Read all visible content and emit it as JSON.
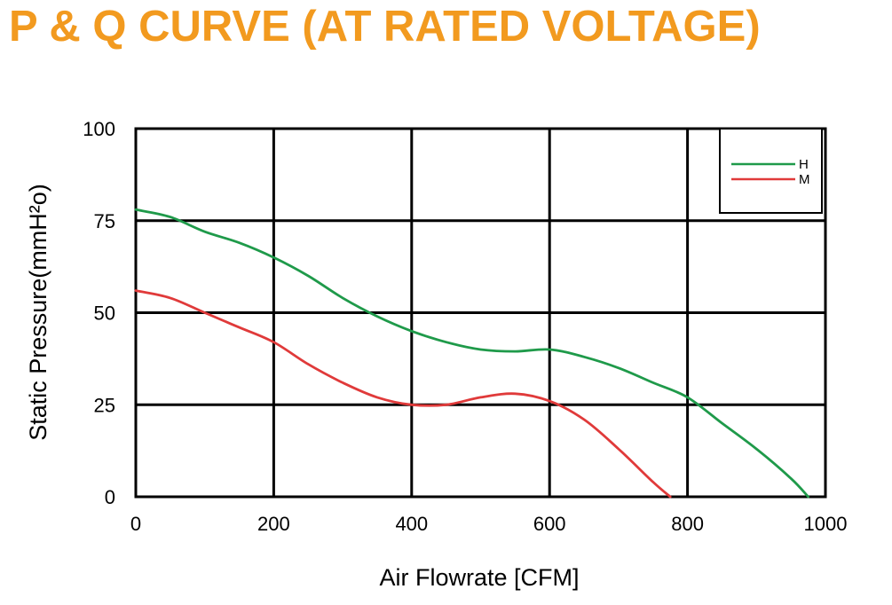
{
  "colors": {
    "title": "#f29a1f",
    "series_h": "#1f9a4a",
    "series_m": "#e03a3a",
    "grid": "#000000"
  },
  "chart_data": {
    "type": "line",
    "title": "P & Q CURVE (AT RATED VOLTAGE)",
    "xlabel": "Air  Flowrate   [CFM]",
    "ylabel": "Static Pressure(mmH²o)",
    "xlim": [
      0,
      1000
    ],
    "ylim": [
      0,
      100
    ],
    "xticks": [
      0,
      200,
      400,
      600,
      800,
      1000
    ],
    "yticks": [
      0,
      25,
      50,
      75,
      100
    ],
    "xtick_labels": [
      "0",
      "200",
      "400",
      "600",
      "800",
      "1000"
    ],
    "ytick_labels": [
      "0",
      "25",
      "50",
      "75",
      "100"
    ],
    "grid": true,
    "legend_position": "top-right",
    "series": [
      {
        "name": "H",
        "color": "#1f9a4a",
        "x": [
          0,
          50,
          100,
          150,
          200,
          250,
          300,
          350,
          400,
          450,
          500,
          550,
          600,
          650,
          700,
          750,
          800,
          850,
          900,
          950,
          975
        ],
        "y": [
          78,
          76,
          72,
          69,
          65,
          60,
          54,
          49,
          45,
          42,
          40,
          39.5,
          40,
          38,
          35,
          31,
          27,
          20,
          13,
          5,
          0
        ]
      },
      {
        "name": "M",
        "color": "#e03a3a",
        "x": [
          0,
          50,
          100,
          150,
          200,
          250,
          300,
          350,
          400,
          450,
          500,
          550,
          600,
          650,
          700,
          750,
          775
        ],
        "y": [
          56,
          54,
          50,
          46,
          42,
          36,
          31,
          27,
          25,
          25,
          27,
          28,
          26,
          21,
          13,
          4,
          0
        ]
      }
    ]
  }
}
